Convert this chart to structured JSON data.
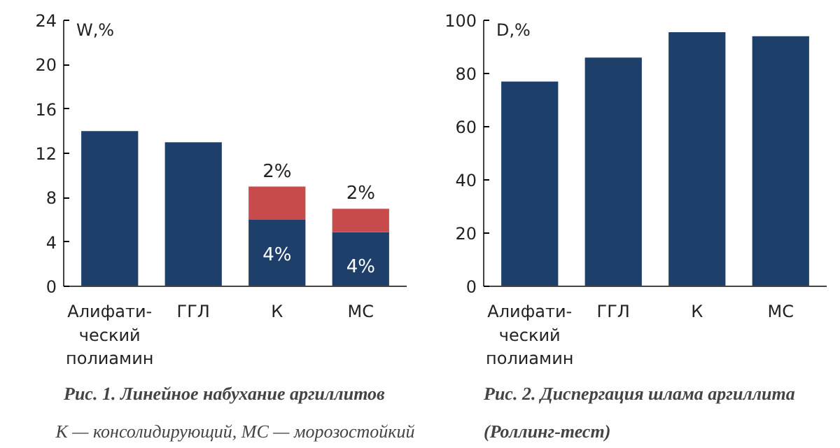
{
  "chart_data": [
    {
      "type": "bar",
      "title": "Рис. 1. Линейное набухание аргиллитов",
      "ylabel": "W,%",
      "categories": [
        "Алифати-\nческий\nполиамин",
        "ГГЛ",
        "К",
        "МС"
      ],
      "stacked": true,
      "series": [
        {
          "color": "#1f3f6b",
          "values": [
            14,
            13,
            6,
            4.9
          ]
        },
        {
          "color": "#c84b4b",
          "values": [
            null,
            null,
            3,
            2.1
          ]
        }
      ],
      "ylim": [
        0,
        24
      ],
      "yticks": [
        0,
        4,
        8,
        12,
        16,
        20,
        24
      ],
      "grid": false,
      "annotations": [
        {
          "text": "4%",
          "x": "К",
          "y": 6
        },
        {
          "text": "4%",
          "x": "МС",
          "y": 4.9
        },
        {
          "text": "2%",
          "x": "К",
          "y": 9
        },
        {
          "text": "2%",
          "x": "МС",
          "y": 7
        },
        "К — консолидирующий, МС — морозостойкий"
      ]
    },
    {
      "type": "bar",
      "title": "Рис. 2. Диспергация шлама аргиллита (Роллинг-тест)",
      "ylabel": "D,%",
      "categories": [
        "Алифати-\nческий\nполиамин",
        "ГГЛ",
        "К",
        "МС"
      ],
      "series": [
        {
          "color": "#1f3f6b",
          "values": [
            77,
            86,
            95.5,
            94
          ]
        }
      ],
      "ylim": [
        0,
        100
      ],
      "yticks": [
        0,
        20,
        40,
        60,
        80,
        100
      ],
      "grid": false
    }
  ]
}
